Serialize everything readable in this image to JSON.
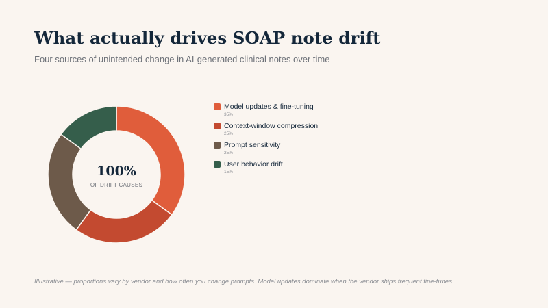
{
  "header": {
    "title": "What actually drives SOAP note drift",
    "subtitle": "Four sources of unintended change in AI-generated clinical notes over time"
  },
  "center": {
    "value": "100%",
    "label": "OF DRIFT CAUSES"
  },
  "footnote": "Illustrative — proportions vary by vendor and how often you change prompts. Model updates dominate when the vendor ships frequent fine-tunes.",
  "chart_data": {
    "type": "pie",
    "donut": true,
    "categories": [
      "Model updates & fine-tuning",
      "Context-window compression",
      "Prompt sensitivity",
      "User behavior drift"
    ],
    "values": [
      35,
      25,
      25,
      15
    ],
    "value_labels": [
      "35%",
      "25%",
      "25%",
      "15%"
    ],
    "colors": [
      "#e05d3b",
      "#c34a30",
      "#6d5a4a",
      "#355e4b"
    ],
    "legend_position": "right",
    "title": "What actually drives SOAP note drift"
  }
}
